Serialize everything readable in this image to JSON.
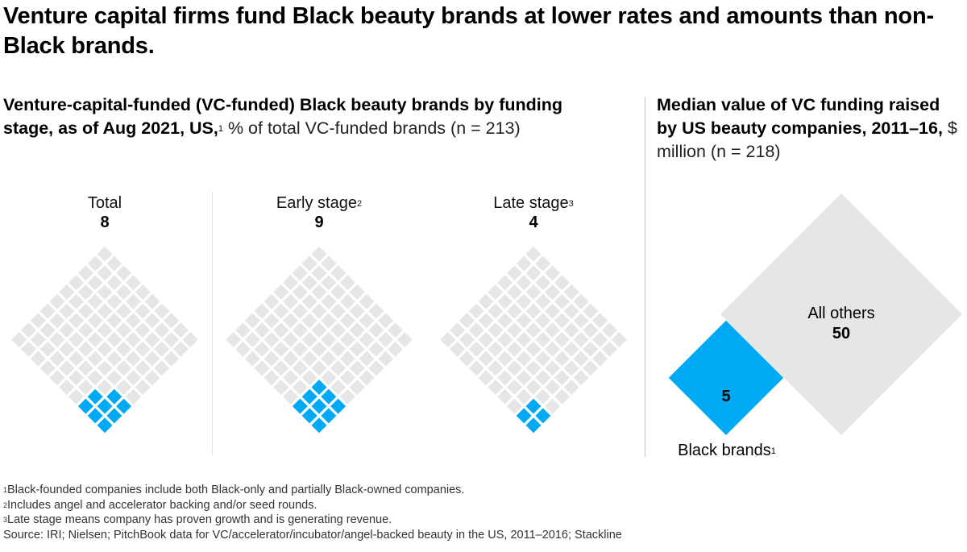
{
  "title": "Venture capital firms fund Black beauty brands at lower rates and amounts than non-Black brands.",
  "left_panel": {
    "subtitle_bold": "Venture-capital-funded (VC-funded) Black beauty brands by funding stage, as of Aug 2021, US,",
    "subtitle_sup": "1",
    "subtitle_regular": " % of total VC-funded brands (n = 213)"
  },
  "right_panel": {
    "subtitle_bold": "Median value of VC funding raised by US beauty companies, 2011–16,",
    "subtitle_regular": " $ million (n = 218)"
  },
  "colors": {
    "highlight": "#00A9F4",
    "base": "#E6E6E6"
  },
  "chart_data": [
    {
      "type": "waffle",
      "title": "VC-funded Black beauty brands by funding stage (% of total VC-funded brands)",
      "grid": [
        10,
        10
      ],
      "unit": "%",
      "categories": [
        {
          "label": "Total",
          "sup": "",
          "value": 8,
          "display": "8"
        },
        {
          "label": "Early stage",
          "sup": "2",
          "value": 9,
          "display": "9"
        },
        {
          "label": "Late stage",
          "sup": "3",
          "value": 4,
          "display": "4"
        }
      ]
    },
    {
      "type": "area-diamond",
      "title": "Median value of VC funding raised by US beauty companies, 2011–16 ($ million)",
      "unit": "$ million",
      "series": [
        {
          "name": "All others",
          "sup": "",
          "value": 50,
          "display": "50"
        },
        {
          "name": "Black brands",
          "sup": "1",
          "value": 5,
          "display": "5"
        }
      ]
    }
  ],
  "footnotes": [
    {
      "sup": "1",
      "text": "Black-founded companies include both Black-only and partially Black-owned companies."
    },
    {
      "sup": "2",
      "text": "Includes angel and accelerator backing and/or seed rounds."
    },
    {
      "sup": "3",
      "text": "Late stage means company has proven growth and is generating revenue."
    },
    {
      "sup": "",
      "text": " Source: IRI; Nielsen; PitchBook data for VC/accelerator/incubator/angel-backed beauty in the US, 2011–2016; Stackline"
    }
  ]
}
